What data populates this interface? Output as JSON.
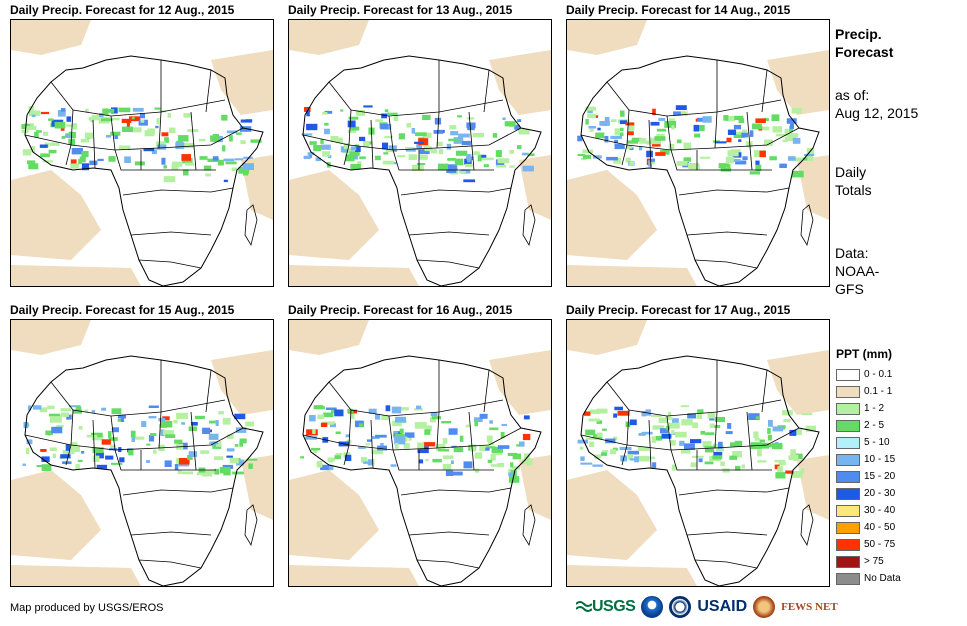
{
  "panels": [
    {
      "title": "Daily Precip. Forecast for 12 Aug., 2015"
    },
    {
      "title": "Daily Precip. Forecast for 13 Aug., 2015"
    },
    {
      "title": "Daily Precip. Forecast for 14 Aug., 2015"
    },
    {
      "title": "Daily Precip. Forecast for 15 Aug., 2015"
    },
    {
      "title": "Daily Precip. Forecast for 16 Aug., 2015"
    },
    {
      "title": "Daily Precip. Forecast for 17 Aug., 2015"
    }
  ],
  "side": {
    "heading1": "Precip.",
    "heading2": "Forecast",
    "asof_label": "as of:",
    "asof_date": "Aug 12, 2015",
    "totals1": "Daily",
    "totals2": "Totals",
    "data1": "Data:",
    "data2": "NOAA-",
    "data3": "GFS"
  },
  "legend": {
    "title": "PPT (mm)",
    "items": [
      {
        "label": "0 - 0.1",
        "color": "#ffffff"
      },
      {
        "label": "0.1 - 1",
        "color": "#f0dcbe"
      },
      {
        "label": "1 - 2",
        "color": "#b4f0a0"
      },
      {
        "label": "2 - 5",
        "color": "#64dc64"
      },
      {
        "label": "5 - 10",
        "color": "#b4f0fa"
      },
      {
        "label": "10 - 15",
        "color": "#78b4f0"
      },
      {
        "label": "15 - 20",
        "color": "#508cf0"
      },
      {
        "label": "20 - 30",
        "color": "#1e5ae6"
      },
      {
        "label": "30 - 40",
        "color": "#ffe678"
      },
      {
        "label": "40 - 50",
        "color": "#ffa000"
      },
      {
        "label": "50 - 75",
        "color": "#ff3200"
      },
      {
        "label": "> 75",
        "color": "#a01414"
      },
      {
        "label": "No Data",
        "color": "#8c8c8c"
      }
    ]
  },
  "credit": "Map produced by USGS/EROS",
  "logos": {
    "usgs": "USGS",
    "usaid": "USAID",
    "fews": "FEWS NET"
  }
}
